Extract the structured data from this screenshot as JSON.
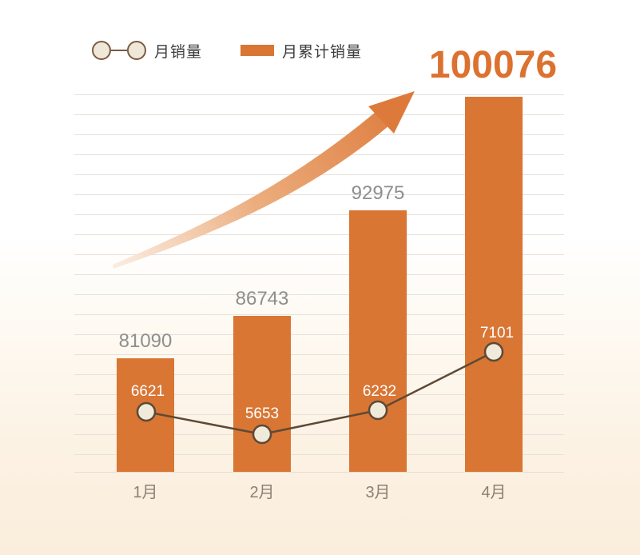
{
  "legend": {
    "items": [
      {
        "label": "月销量",
        "marker": "line-dot"
      },
      {
        "label": "月累计销量",
        "marker": "bar"
      }
    ]
  },
  "chart_data": {
    "type": "bar",
    "categories": [
      "1月",
      "2月",
      "3月",
      "4月"
    ],
    "series": [
      {
        "name": "月累计销量",
        "type": "bar",
        "values": [
          81090,
          86743,
          92975,
          100076
        ]
      },
      {
        "name": "月销量",
        "type": "line",
        "values": [
          6621,
          5653,
          6232,
          7101
        ]
      }
    ],
    "title": "",
    "xlabel": "",
    "ylabel": "",
    "grid": true,
    "legend_position": "top",
    "highlight_value": "100076",
    "annotations": [
      {
        "type": "arrow",
        "meaning": "upward-trend"
      }
    ],
    "colors": {
      "bar": "#d97634",
      "highlight_number": "#dc7130",
      "line": "#5e4936",
      "dot_fill": "#f0eada",
      "dot_border": "#5e4936",
      "grid": "#e6e1d9",
      "value_label": "#8e8e8e",
      "axis_label": "#8a8173",
      "background_bottom": "#faeddb"
    }
  }
}
